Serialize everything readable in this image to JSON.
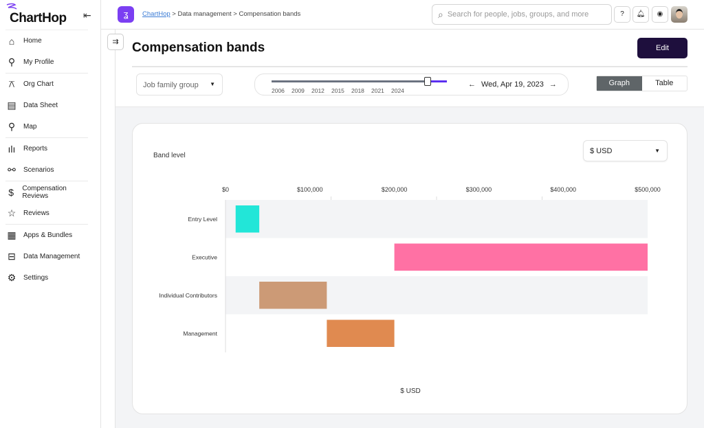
{
  "sidebar": {
    "logo": "ChartHop",
    "items": [
      {
        "label": "Home",
        "icon": "home-icon"
      },
      {
        "label": "My Profile",
        "icon": "person-icon"
      },
      {
        "label": "Org Chart",
        "icon": "org-chart-icon"
      },
      {
        "label": "Data Sheet",
        "icon": "table-icon"
      },
      {
        "label": "Map",
        "icon": "map-pin-icon"
      },
      {
        "label": "Reports",
        "icon": "bar-chart-icon"
      },
      {
        "label": "Scenarios",
        "icon": "scenario-icon"
      },
      {
        "label": "Compensation Reviews",
        "icon": "dollar-icon"
      },
      {
        "label": "Reviews",
        "icon": "star-icon"
      },
      {
        "label": "Apps & Bundles",
        "icon": "apps-icon"
      },
      {
        "label": "Data Management",
        "icon": "drive-icon"
      },
      {
        "label": "Settings",
        "icon": "gear-icon"
      }
    ]
  },
  "header": {
    "breadcrumb": {
      "root": "ChartHop",
      "sep": " > ",
      "middle": "Data management",
      "current": "Compensation bands"
    },
    "search_placeholder": "Search for people, jobs, groups, and more",
    "help": "?"
  },
  "page": {
    "title": "Compensation bands",
    "edit": "Edit",
    "filter": "Job family group",
    "years": [
      "2006",
      "2009",
      "2012",
      "2015",
      "2018",
      "2021",
      "2024"
    ],
    "timeline_fraction": 0.89,
    "date": "Wed, Apr 19, 2023",
    "views": [
      "Graph",
      "Table"
    ],
    "active_view": "Graph"
  },
  "chart_data": {
    "type": "bar",
    "orientation": "horizontal-range",
    "title": "Band level",
    "currency": "$ USD",
    "xlabel": "$ USD",
    "xlim": [
      0,
      500000
    ],
    "xticks": [
      "$0",
      "$100,000",
      "$200,000",
      "$300,000",
      "$400,000",
      "$500,000"
    ],
    "categories": [
      "Entry Level",
      "Executive",
      "Individual Contributors",
      "Management"
    ],
    "series": [
      {
        "name": "band",
        "min": [
          12000,
          200000,
          40000,
          120000
        ],
        "max": [
          40000,
          500000,
          120000,
          200000
        ],
        "colors": [
          "#22e6d8",
          "#ff71a4",
          "#cc9a76",
          "#e08a50"
        ]
      }
    ]
  }
}
